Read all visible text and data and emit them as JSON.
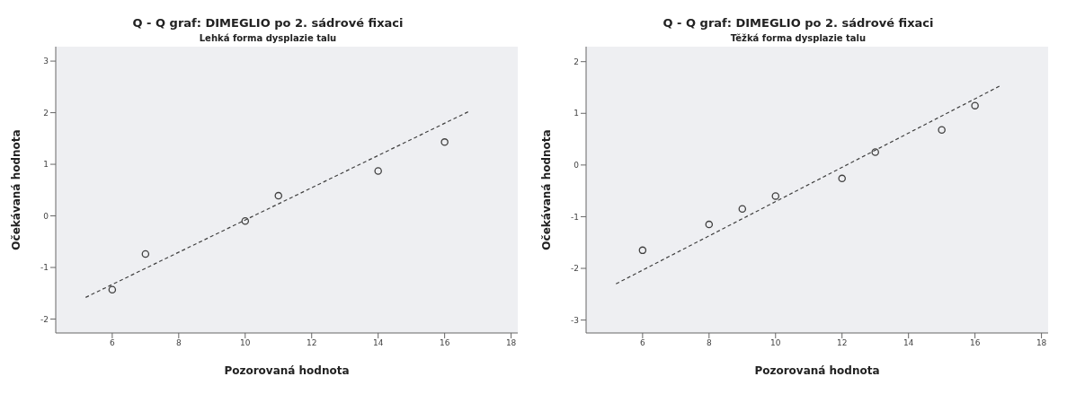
{
  "chart_data": [
    {
      "type": "scatter",
      "title": "Q - Q graf: DIMEGLIO po 2. sádrové fixaci",
      "subtitle": "Lehká forma dysplazie talu",
      "xlabel": "Pozorovaná hodnota",
      "ylabel": "Očekávaná hodnota",
      "xlim": [
        4.3,
        18.2
      ],
      "xticks": [
        6,
        8,
        10,
        12,
        14,
        16,
        18
      ],
      "ylim": [
        -2.27,
        3.28
      ],
      "yticks": [
        -2,
        -1,
        0,
        1,
        2,
        3
      ],
      "grid": false,
      "series": [
        {
          "color": "#404040",
          "marker": "circle",
          "x": [
            6,
            7,
            10,
            11,
            14,
            16
          ],
          "values": [
            -1.43,
            -0.74,
            -0.1,
            0.39,
            0.87,
            1.43
          ]
        },
        {
          "type": "line",
          "color": "#404040",
          "marker": "none",
          "line_style": "dashed",
          "x": [
            5.2,
            16.75
          ],
          "values": [
            -1.58,
            2.03
          ]
        }
      ]
    },
    {
      "type": "scatter",
      "title": "Q - Q graf: DIMEGLIO po 2. sádrové fixaci",
      "subtitle": "Těžká forma dysplazie talu",
      "xlabel": "Pozorovaná hodnota",
      "ylabel": "Očekávaná hodnota",
      "xlim": [
        4.3,
        18.2
      ],
      "xticks": [
        6,
        8,
        10,
        12,
        14,
        16,
        18
      ],
      "ylim": [
        -3.25,
        2.29
      ],
      "yticks": [
        -3,
        -2,
        -1,
        0,
        1,
        2
      ],
      "grid": false,
      "series": [
        {
          "color": "#404040",
          "marker": "circle",
          "x": [
            6,
            8,
            9,
            10,
            12,
            13,
            15,
            16
          ],
          "values": [
            -1.65,
            -1.15,
            -0.85,
            -0.6,
            -0.26,
            0.25,
            0.68,
            1.15
          ]
        },
        {
          "type": "line",
          "color": "#404040",
          "marker": "none",
          "line_style": "dashed",
          "x": [
            5.2,
            16.75
          ],
          "values": [
            -2.3,
            1.53
          ]
        }
      ]
    }
  ]
}
